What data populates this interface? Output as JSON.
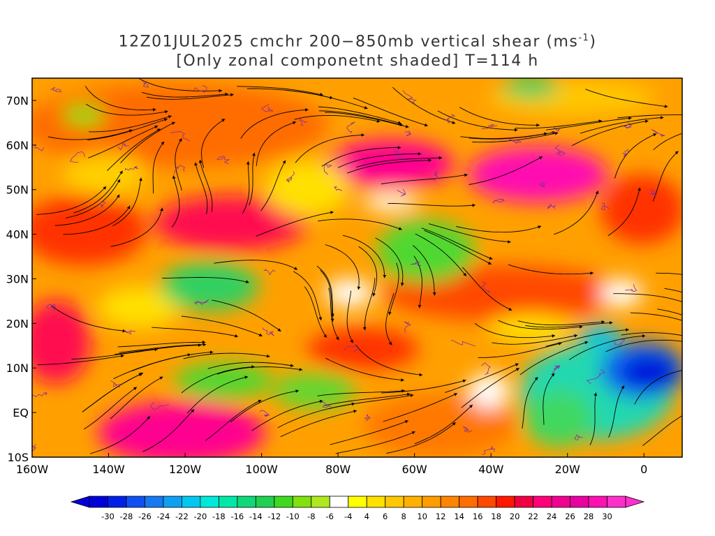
{
  "title": {
    "line1_prefix": "12Z01JUL2025 cmchr 200−850mb vertical shear (ms",
    "line1_sup": "-1",
    "line1_suffix": ")",
    "line2": "[Only zonal componetnt shaded] T=114 h"
  },
  "map": {
    "lon_range": [
      -160,
      10
    ],
    "lat_range": [
      -10,
      75
    ],
    "lat_labels": [
      "70N",
      "60N",
      "50N",
      "40N",
      "30N",
      "20N",
      "10N",
      "EQ",
      "10S"
    ],
    "lat_values": [
      70,
      60,
      50,
      40,
      30,
      20,
      10,
      0,
      -10
    ],
    "lon_labels": [
      "160W",
      "140W",
      "120W",
      "100W",
      "80W",
      "60W",
      "40W",
      "20W",
      "0"
    ],
    "lon_values": [
      -160,
      -140,
      -120,
      -100,
      -80,
      -60,
      -40,
      -20,
      0
    ],
    "streamline_color": "#000000",
    "contour_color": "#8a2b9a"
  },
  "colorbar": {
    "levels": [
      "-30",
      "-28",
      "-26",
      "-24",
      "-22",
      "-20",
      "-18",
      "-16",
      "-14",
      "-12",
      "-10",
      "-8",
      "-6",
      "-4",
      "4",
      "6",
      "8",
      "10",
      "12",
      "14",
      "16",
      "18",
      "20",
      "22",
      "24",
      "26",
      "28",
      "30"
    ],
    "colors": [
      "#0000d8",
      "#0020e8",
      "#1050f0",
      "#1878f0",
      "#10a0f0",
      "#00c8f0",
      "#00e8d8",
      "#00e8a8",
      "#10d878",
      "#20d050",
      "#40d820",
      "#80e010",
      "#b0e820",
      "#ffffff",
      "#ffff00",
      "#ffe000",
      "#ffc800",
      "#ffb000",
      "#ff9c00",
      "#ff8400",
      "#ff6c00",
      "#ff4800",
      "#ff1800",
      "#f00040",
      "#ff0078",
      "#f00090",
      "#e800a0",
      "#ff10b0",
      "#ff30c8"
    ]
  }
}
